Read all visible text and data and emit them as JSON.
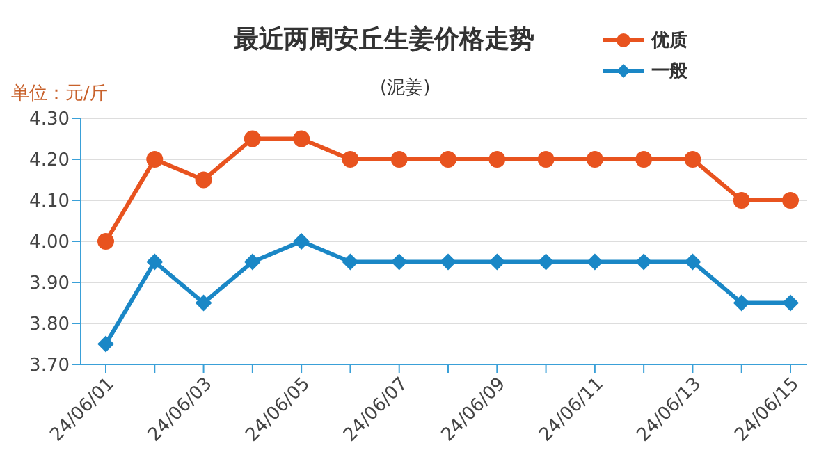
{
  "chart_data": {
    "type": "line",
    "title": "最近两周安丘生姜价格走势",
    "subtitle": "(泥姜)",
    "ylabel": "单位：元/斤",
    "categories": [
      "24/06/01",
      null,
      "24/06/03",
      null,
      "24/06/05",
      null,
      "24/06/07",
      null,
      "24/06/09",
      null,
      "24/06/11",
      null,
      "24/06/13",
      null,
      "24/06/15"
    ],
    "series": [
      {
        "name": "优质",
        "color": "#e8531f",
        "marker": "circle",
        "values": [
          4.0,
          4.2,
          4.15,
          4.25,
          4.25,
          4.2,
          4.2,
          4.2,
          4.2,
          4.2,
          4.2,
          4.2,
          4.2,
          4.1,
          4.1
        ]
      },
      {
        "name": "一般",
        "color": "#1a87c6",
        "marker": "diamond",
        "values": [
          3.75,
          3.95,
          3.85,
          3.95,
          4.0,
          3.95,
          3.95,
          3.95,
          3.95,
          3.95,
          3.95,
          3.95,
          3.95,
          3.85,
          3.85
        ]
      }
    ],
    "ylim": [
      3.7,
      4.3
    ],
    "yticks": [
      {
        "value": 3.7,
        "label": "3.70"
      },
      {
        "value": 3.8,
        "label": "3.80"
      },
      {
        "value": 3.9,
        "label": "3.90"
      },
      {
        "value": 4.0,
        "label": "4.00"
      },
      {
        "value": 4.1,
        "label": "4.10"
      },
      {
        "value": 4.2,
        "label": "4.20"
      },
      {
        "value": 4.3,
        "label": "4.30"
      }
    ],
    "grid": "y",
    "legend": "top right",
    "line_style": "solid"
  }
}
